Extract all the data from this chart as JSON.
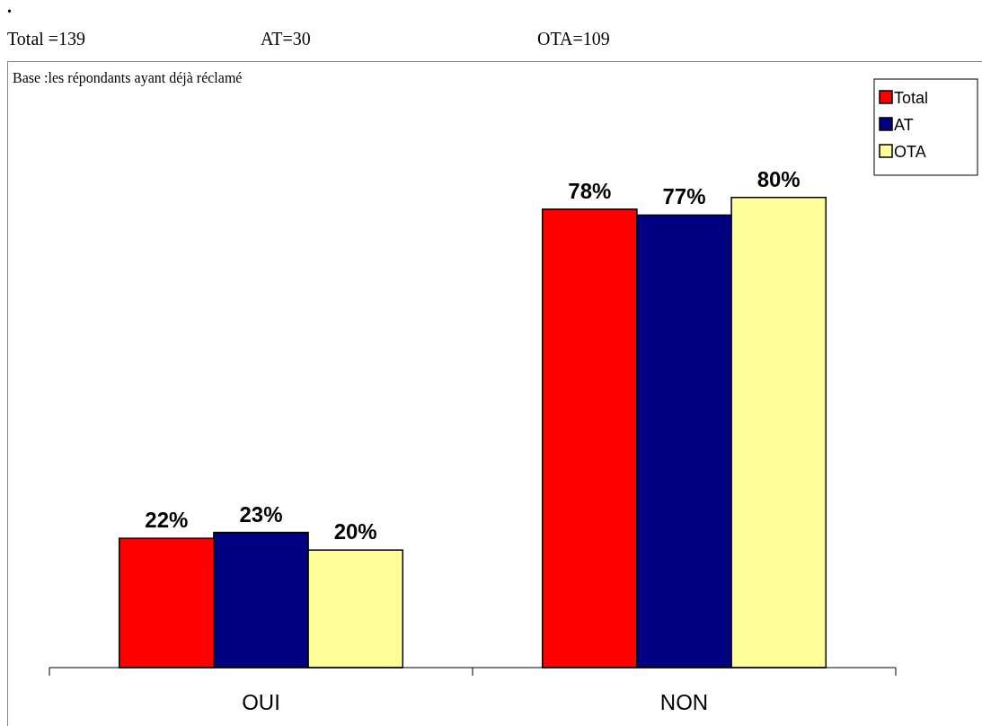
{
  "chart_data": {
    "type": "bar",
    "categories": [
      "OUI",
      "NON"
    ],
    "series": [
      {
        "name": "Total",
        "color": "#ff0000",
        "values": [
          22,
          78
        ],
        "value_labels": [
          "22%",
          "78%"
        ]
      },
      {
        "name": "AT",
        "color": "#000080",
        "values": [
          23,
          77
        ],
        "value_labels": [
          "23%",
          "77%"
        ]
      },
      {
        "name": "OTA",
        "color": "#ffff99",
        "values": [
          20,
          80
        ],
        "value_labels": [
          "20%",
          "80%"
        ]
      }
    ],
    "legend": "top right",
    "annotations": [
      ".",
      "Total =139",
      "AT=30",
      "OTA=109",
      "Base :les répondants ayant déjà réclamé"
    ]
  }
}
